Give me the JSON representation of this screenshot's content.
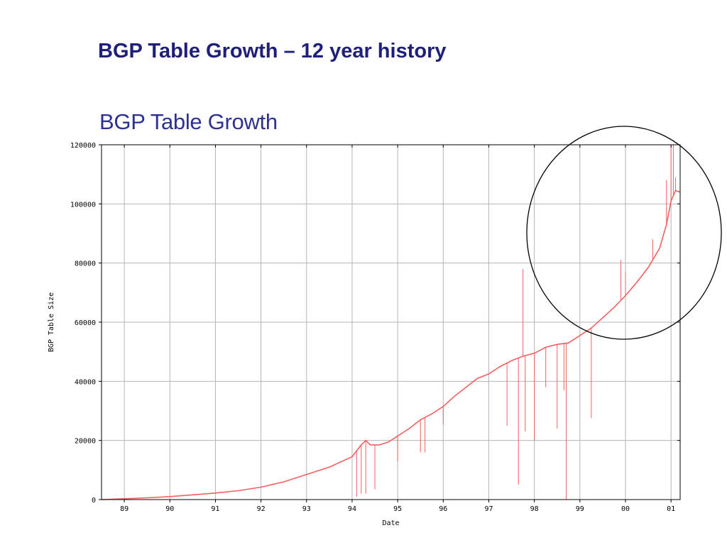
{
  "slide": {
    "title": "BGP Table Growth – 12 year history"
  },
  "chart_data": {
    "type": "line",
    "title": "BGP Table Growth",
    "xlabel": "Date",
    "ylabel": "BGP Table Size",
    "x_ticks": [
      "89",
      "90",
      "91",
      "92",
      "93",
      "94",
      "95",
      "96",
      "97",
      "98",
      "99",
      "00",
      "01"
    ],
    "y_ticks": [
      "0",
      "20000",
      "40000",
      "60000",
      "80000",
      "100000",
      "120000"
    ],
    "xlim": [
      1988.5,
      2001.2
    ],
    "ylim": [
      0,
      120000
    ],
    "grid": true,
    "line_color": "#f26060",
    "series": [
      {
        "x": [
          1988.5,
          1989.0,
          1989.5,
          1990.0,
          1990.5,
          1991.0,
          1991.5,
          1992.0,
          1992.5,
          1993.0,
          1993.5,
          1994.0,
          1994.1,
          1994.2,
          1994.3,
          1994.4,
          1994.6,
          1994.8,
          1995.0,
          1995.25,
          1995.5,
          1995.75,
          1996.0,
          1996.25,
          1996.5,
          1996.75,
          1997.0,
          1997.25,
          1997.5,
          1997.75,
          1998.0,
          1998.25,
          1998.5,
          1998.75,
          1999.0,
          1999.25,
          1999.5,
          1999.75,
          2000.0,
          2000.25,
          2000.5,
          2000.75,
          2000.9,
          2001.0,
          2001.1,
          2001.2
        ],
        "y": [
          0,
          300,
          600,
          1000,
          1600,
          2200,
          3000,
          4200,
          6000,
          8500,
          11000,
          14500,
          16500,
          18500,
          20000,
          18500,
          18500,
          19500,
          21500,
          24000,
          27000,
          29000,
          31500,
          35000,
          38000,
          41000,
          42500,
          45000,
          47000,
          48500,
          49500,
          51500,
          52500,
          53000,
          55500,
          58000,
          61500,
          65000,
          69000,
          73500,
          78500,
          85000,
          93000,
          101000,
          104500,
          104000
        ]
      }
    ],
    "spikes": [
      {
        "x": 1994.1,
        "y": 1000
      },
      {
        "x": 1994.2,
        "y": 2000
      },
      {
        "x": 1994.3,
        "y": 2000
      },
      {
        "x": 1994.5,
        "y": 3500
      },
      {
        "x": 1995.0,
        "y": 13000
      },
      {
        "x": 1995.5,
        "y": 16000
      },
      {
        "x": 1995.6,
        "y": 16000
      },
      {
        "x": 1996.0,
        "y": 25500
      },
      {
        "x": 1997.4,
        "y": 25000
      },
      {
        "x": 1997.65,
        "y": 5000
      },
      {
        "x": 1997.75,
        "y": 78000
      },
      {
        "x": 1997.8,
        "y": 23000
      },
      {
        "x": 1998.0,
        "y": 20000
      },
      {
        "x": 1998.25,
        "y": 38000
      },
      {
        "x": 1998.5,
        "y": 24000
      },
      {
        "x": 1998.65,
        "y": 37000
      },
      {
        "x": 1998.7,
        "y": 0
      },
      {
        "x": 1999.25,
        "y": 27500
      },
      {
        "x": 1999.9,
        "y": 81000
      },
      {
        "x": 2000.0,
        "y": 77000
      },
      {
        "x": 2000.6,
        "y": 88000
      },
      {
        "x": 2000.9,
        "y": 108000
      },
      {
        "x": 2001.0,
        "y": 120000
      },
      {
        "x": 2001.05,
        "y": 120000
      },
      {
        "x": 2001.1,
        "y": 109000
      }
    ],
    "highlight_ellipse": {
      "stroke": "#000000"
    }
  }
}
